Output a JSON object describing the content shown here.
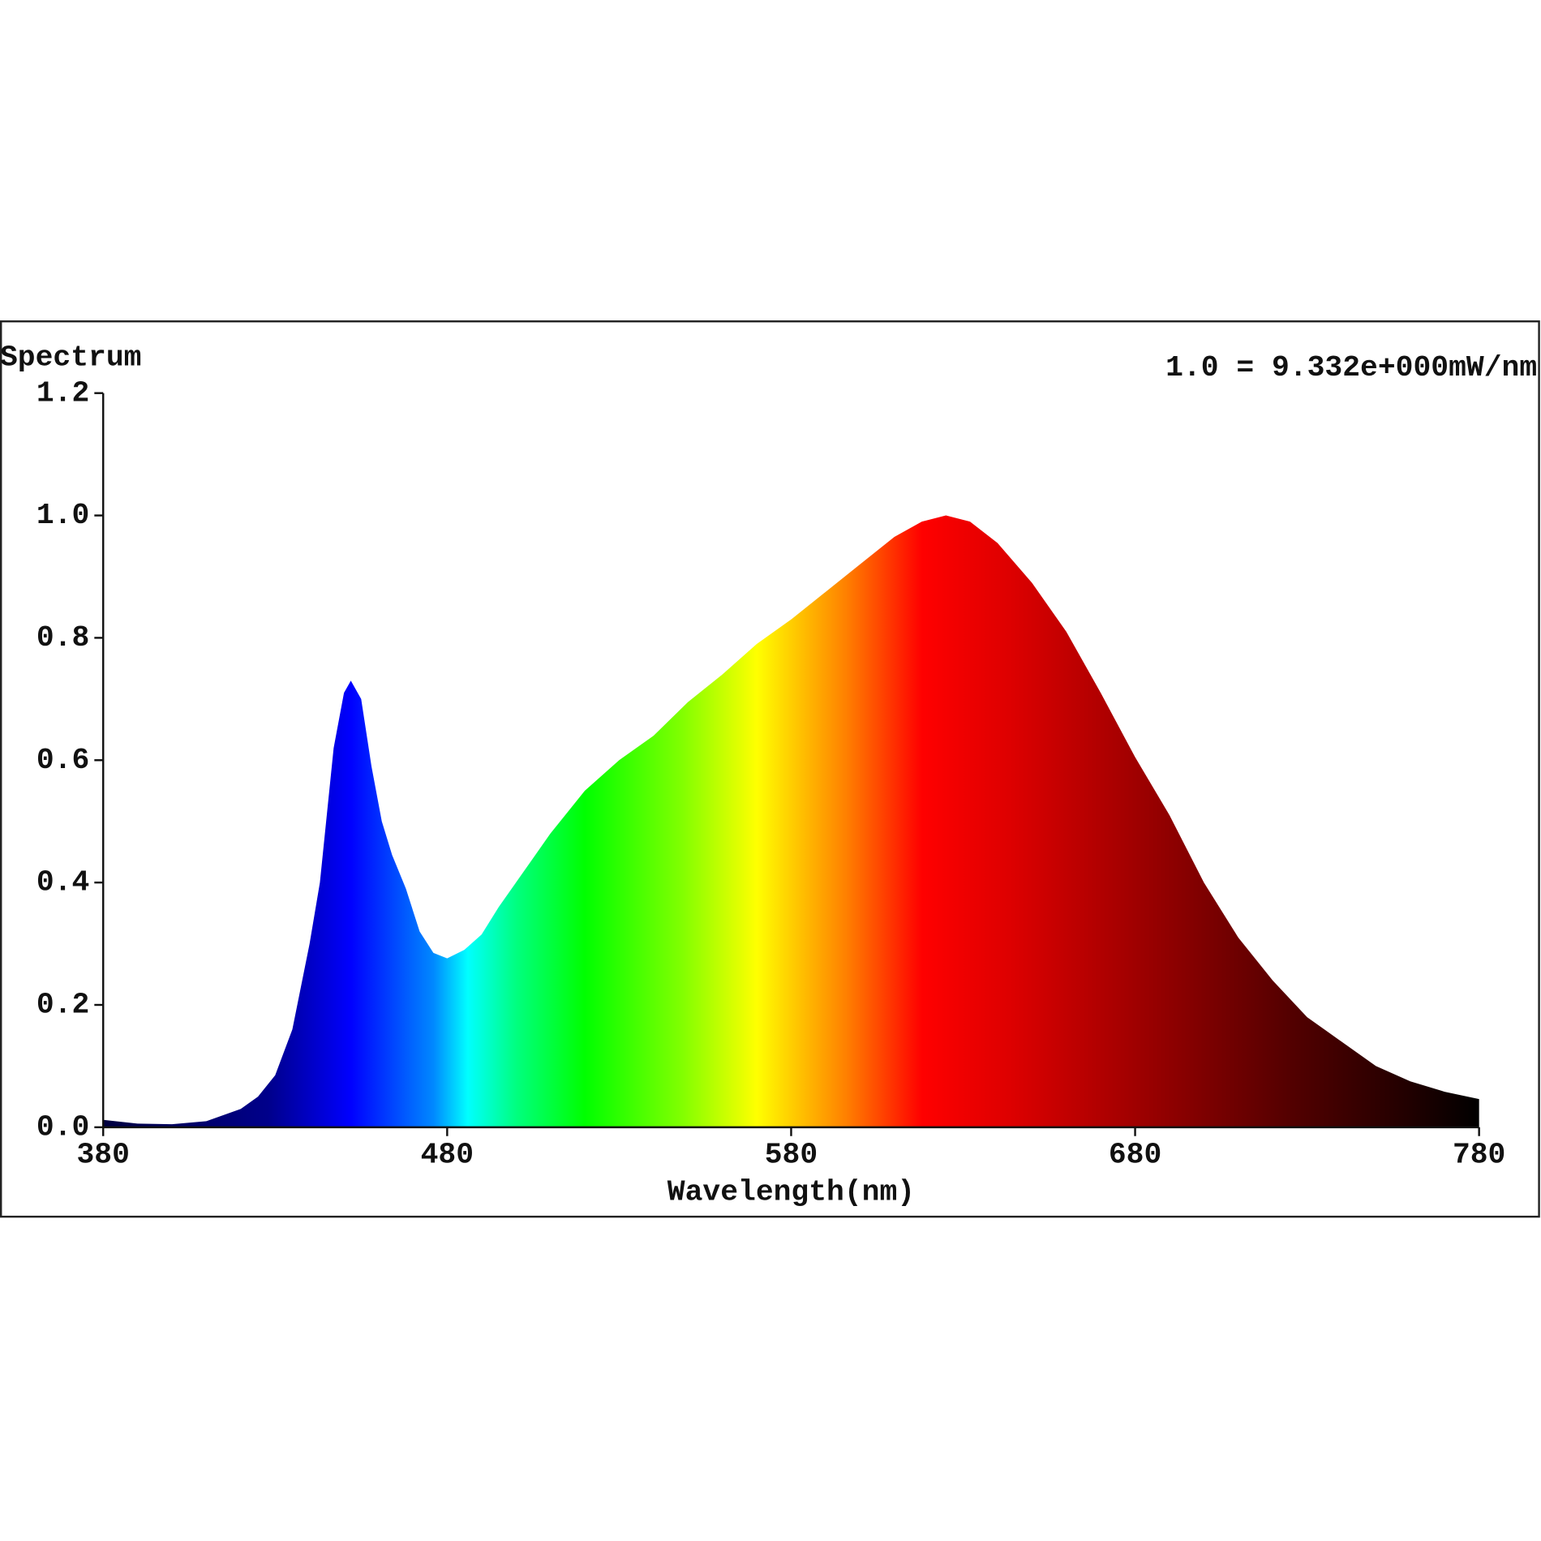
{
  "chart_data": {
    "type": "area",
    "title": "Spectrum",
    "annotation": "1.0 = 9.332e+000mW/nm",
    "x_label": "Wavelength(nm)",
    "xlim": [
      380,
      780
    ],
    "xticks": [
      380,
      480,
      580,
      680,
      780
    ],
    "ylim": [
      0,
      1.2
    ],
    "yticks": [
      {
        "value": 0,
        "label": "0.0"
      },
      0.2,
      0.4,
      0.6,
      0.8,
      {
        "value": 1,
        "label": "1.0"
      },
      1.2
    ],
    "fill": "spectrum-gradient",
    "x": [
      380,
      390,
      400,
      410,
      420,
      425,
      430,
      435,
      440,
      443,
      447,
      450,
      452,
      455,
      458,
      461,
      464,
      468,
      472,
      476,
      480,
      485,
      490,
      495,
      500,
      505,
      510,
      520,
      530,
      540,
      550,
      560,
      570,
      580,
      590,
      600,
      610,
      618,
      625,
      632,
      640,
      650,
      660,
      670,
      680,
      690,
      700,
      710,
      720,
      730,
      740,
      750,
      760,
      770,
      780
    ],
    "values": [
      0.012,
      0.006,
      0.005,
      0.01,
      0.03,
      0.05,
      0.085,
      0.16,
      0.3,
      0.4,
      0.62,
      0.71,
      0.73,
      0.7,
      0.59,
      0.5,
      0.445,
      0.39,
      0.32,
      0.285,
      0.276,
      0.29,
      0.315,
      0.36,
      0.4,
      0.44,
      0.48,
      0.55,
      0.6,
      0.64,
      0.695,
      0.74,
      0.79,
      0.83,
      0.875,
      0.92,
      0.965,
      0.99,
      1.0,
      0.99,
      0.955,
      0.89,
      0.81,
      0.71,
      0.605,
      0.51,
      0.4,
      0.31,
      0.24,
      0.18,
      0.14,
      0.1,
      0.075,
      0.058,
      0.046
    ]
  }
}
